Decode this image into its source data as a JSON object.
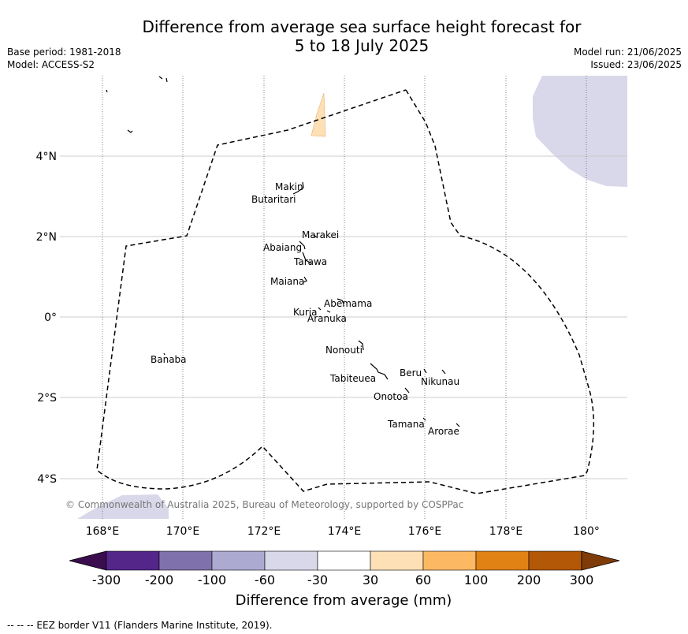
{
  "title_line1": "Difference from average sea surface height forecast for",
  "title_line2": "5 to 18 July 2025",
  "base_period": "Base period: 1981-2018",
  "model": "Model: ACCESS-S2",
  "model_run": "Model run: 21/06/2025",
  "issued": "Issued: 23/06/2025",
  "copyright": "© Commonwealth of Australia 2025, Bureau of Meteorology, supported by COSPPac",
  "footer": "--  --  -- EEZ border V11 (Flanders Marine Institute, 2019).",
  "lat_labels": [
    "4°N",
    "2°N",
    "0°",
    "2°S",
    "4°S"
  ],
  "lon_labels": [
    "168°E",
    "170°E",
    "172°E",
    "174°E",
    "176°E",
    "178°E",
    "180°"
  ],
  "places": [
    "Makin",
    "Butaritari",
    "Marakei",
    "Abaiang",
    "Tarawa",
    "Maiana",
    "Abemama",
    "Kuria",
    "Aranuka",
    "Nonouti",
    "Banaba",
    "Tabiteuea",
    "Beru",
    "Nikunau",
    "Onotoa",
    "Tamana",
    "Arorae"
  ],
  "colorbar": {
    "title": "Difference from average (mm)",
    "tick_labels": [
      "-300",
      "-200",
      "-100",
      "-60",
      "-30",
      "30",
      "60",
      "100",
      "200",
      "300"
    ],
    "colors": [
      "#3b0d4f",
      "#54268a",
      "#7f71ab",
      "#adaad2",
      "#d8d8ea",
      "#ffffff",
      "#fee0b6",
      "#fdb863",
      "#e08214",
      "#b35806",
      "#7f3b08"
    ]
  }
}
